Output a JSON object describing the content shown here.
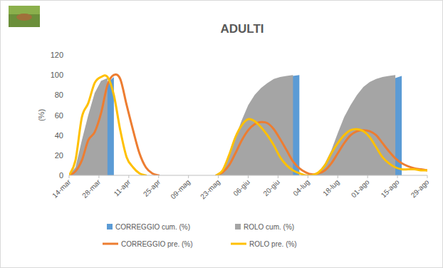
{
  "chart_data": {
    "type": "line",
    "title": "ADULTI",
    "y_label": "(%)",
    "x": [
      0,
      3,
      6,
      9,
      12,
      15,
      18,
      21,
      24,
      27,
      30,
      33,
      36,
      39,
      42,
      45,
      48,
      51,
      54,
      57,
      60,
      63,
      66,
      69,
      72,
      75,
      78,
      81,
      84,
      87,
      90,
      93,
      96,
      99,
      102,
      105,
      108,
      111,
      114,
      117,
      120,
      123,
      126,
      129,
      132,
      135,
      138,
      141,
      144,
      147,
      150,
      153,
      156,
      159,
      162,
      165,
      168
    ],
    "xlim": [
      0,
      168
    ],
    "xticks": [
      {
        "value": 0,
        "label": "14-mar"
      },
      {
        "value": 14,
        "label": "28-mar"
      },
      {
        "value": 28,
        "label": "11-apr"
      },
      {
        "value": 42,
        "label": "25-apr"
      },
      {
        "value": 56,
        "label": "09-mag"
      },
      {
        "value": 70,
        "label": "23-mag"
      },
      {
        "value": 84,
        "label": "06-giu"
      },
      {
        "value": 98,
        "label": "20-giu"
      },
      {
        "value": 112,
        "label": "04-lug"
      },
      {
        "value": 126,
        "label": "18-lug"
      },
      {
        "value": 140,
        "label": "01-ago"
      },
      {
        "value": 154,
        "label": "15-ago"
      },
      {
        "value": 168,
        "label": "29-ago"
      }
    ],
    "ylim": [
      0,
      120
    ],
    "yticks": [
      0,
      20,
      40,
      60,
      80,
      100,
      120
    ],
    "grid": false,
    "legend": "bottom",
    "series": [
      {
        "name": "CORREGGIO cum. (%)",
        "type": "area",
        "color": "#5b9bd5",
        "values": [
          0,
          3,
          12,
          30,
          52,
          75,
          92,
          98,
          null,
          null,
          null,
          null,
          null,
          null,
          null,
          null,
          null,
          null,
          null,
          null,
          null,
          null,
          null,
          0,
          2,
          10,
          22,
          38,
          52,
          65,
          75,
          84,
          90,
          95,
          97,
          99,
          100,
          null,
          0,
          2,
          6,
          15,
          28,
          42,
          56,
          68,
          78,
          86,
          91,
          94,
          96,
          97,
          99,
          null,
          null,
          null,
          null
        ]
      },
      {
        "name": "ROLO cum. (%)",
        "type": "area",
        "color": "#a5a5a5",
        "values": [
          0,
          8,
          35,
          60,
          82,
          94,
          97,
          null,
          null,
          null,
          null,
          null,
          null,
          null,
          null,
          null,
          null,
          null,
          null,
          null,
          null,
          null,
          null,
          0,
          5,
          20,
          38,
          55,
          70,
          80,
          87,
          92,
          96,
          98,
          99,
          100,
          null,
          null,
          0,
          3,
          12,
          25,
          42,
          58,
          70,
          80,
          88,
          93,
          96,
          98,
          99,
          100,
          null,
          null,
          null,
          null,
          null
        ]
      },
      {
        "name": "CORREGGIO pre. (%)",
        "type": "line",
        "color": "#ed7d31",
        "values": [
          0,
          4,
          15,
          35,
          43,
          62,
          90,
          100,
          96,
          70,
          45,
          22,
          8,
          2,
          0,
          null,
          null,
          null,
          null,
          null,
          null,
          null,
          null,
          0,
          3,
          10,
          22,
          35,
          45,
          51,
          53,
          52,
          46,
          36,
          25,
          14,
          7,
          3,
          1,
          2,
          5,
          12,
          22,
          32,
          40,
          44,
          45,
          44,
          40,
          32,
          24,
          17,
          12,
          9,
          7,
          6,
          5
        ]
      },
      {
        "name": "ROLO pre. (%)",
        "type": "line",
        "color": "#ffc000",
        "values": [
          0,
          15,
          58,
          72,
          92,
          98,
          98,
          80,
          45,
          18,
          8,
          2,
          0,
          null,
          null,
          null,
          null,
          null,
          null,
          null,
          null,
          null,
          null,
          0,
          5,
          20,
          38,
          50,
          56,
          54,
          48,
          40,
          30,
          18,
          10,
          5,
          2,
          0,
          0,
          3,
          10,
          22,
          32,
          40,
          45,
          46,
          44,
          38,
          28,
          18,
          12,
          8,
          6,
          6,
          6,
          5,
          5
        ]
      }
    ]
  }
}
